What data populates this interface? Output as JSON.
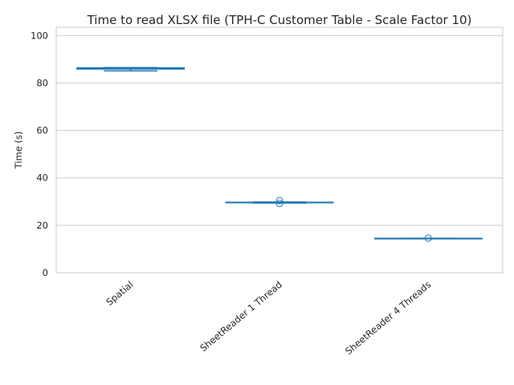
{
  "chart_data": {
    "type": "boxplot",
    "title": "Time to read XLSX file (TPH-C Customer Table - Scale Factor 10)",
    "xlabel": "",
    "ylabel": "Time (s)",
    "ylim": [
      0,
      103.5
    ],
    "yticks": [
      0,
      20,
      40,
      60,
      80,
      100
    ],
    "grid": "horizontal",
    "categories": [
      "Spatial",
      "SheetReader 1 Thread",
      "SheetReader 4 Threads"
    ],
    "boxes": [
      {
        "category": "Spatial",
        "whislo": 85.1,
        "q1": 85.9,
        "med": 86.1,
        "q3": 86.4,
        "whishi": 86.5,
        "fliers": []
      },
      {
        "category": "SheetReader 1 Thread",
        "whislo": 29.4,
        "q1": 29.5,
        "med": 29.6,
        "q3": 29.7,
        "whishi": 29.8,
        "fliers": [
          29.2,
          30.4
        ]
      },
      {
        "category": "SheetReader 4 Threads",
        "whislo": 14.3,
        "q1": 14.35,
        "med": 14.4,
        "q3": 14.45,
        "whishi": 14.5,
        "fliers": [
          14.6
        ]
      }
    ],
    "color": "#1f77b4"
  }
}
